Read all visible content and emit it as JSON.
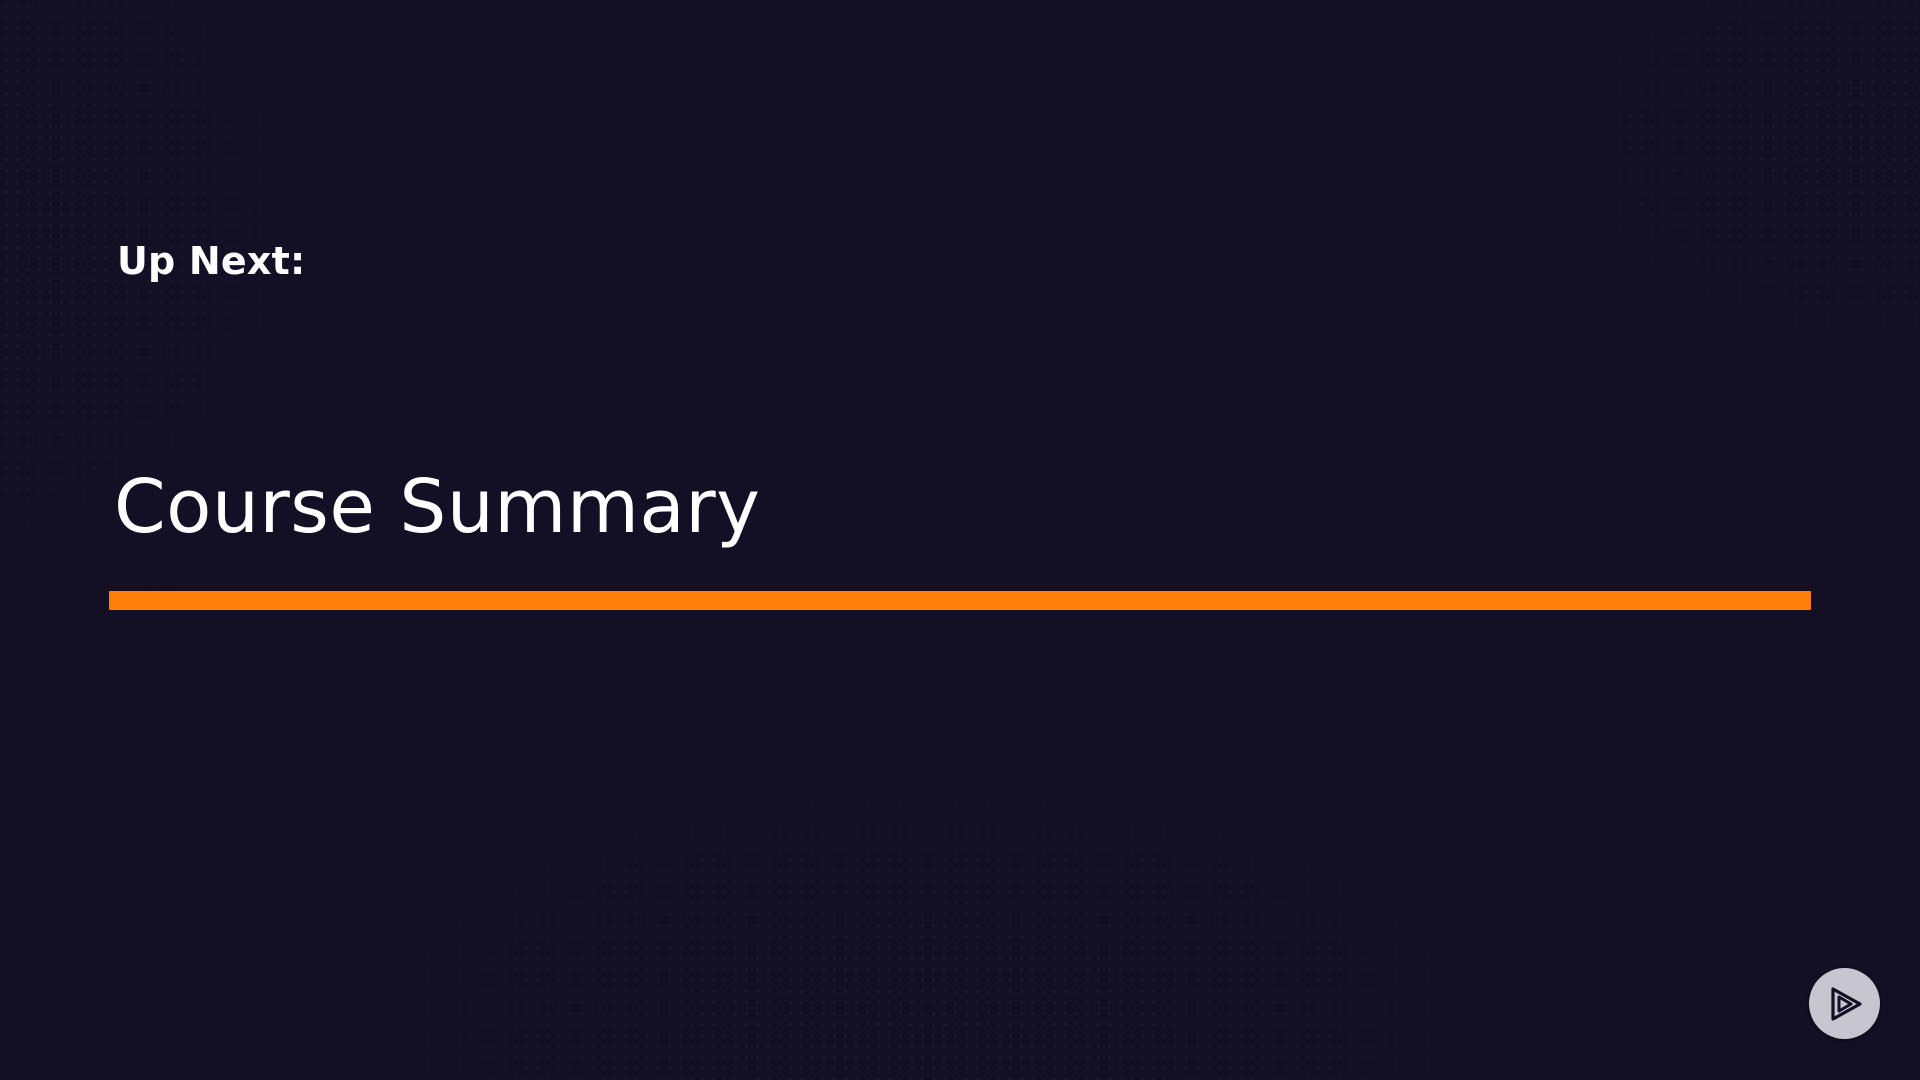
{
  "slide": {
    "kicker": "Up Next:",
    "title": "Course Summary"
  },
  "colors": {
    "background": "#130f24",
    "text": "#ffffff",
    "accent": "#ff7f0a",
    "badge": "#c7c6cf",
    "badge_icon": "#130f24"
  },
  "badge": {
    "icon": "play-logo-icon"
  }
}
